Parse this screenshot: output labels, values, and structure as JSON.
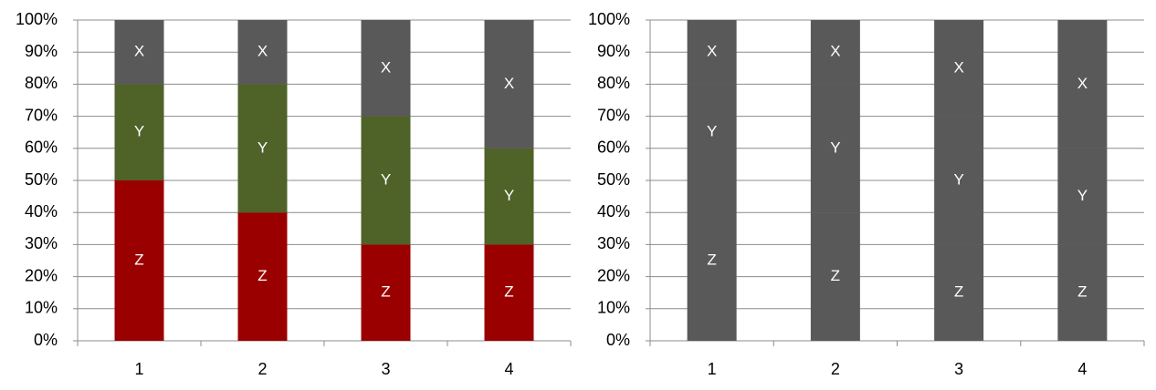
{
  "chart_data": [
    {
      "type": "bar",
      "stacked": true,
      "categories": [
        "1",
        "2",
        "3",
        "4"
      ],
      "series": [
        {
          "name": "Z",
          "color": "#9b0000",
          "values": [
            50,
            40,
            30,
            30
          ]
        },
        {
          "name": "Y",
          "color": "#4f6228",
          "values": [
            30,
            40,
            40,
            30
          ]
        },
        {
          "name": "X",
          "color": "#595959",
          "values": [
            20,
            20,
            30,
            40
          ]
        }
      ],
      "ylim": [
        0,
        100
      ],
      "yticks": [
        {
          "value": 0,
          "label": "0%"
        },
        {
          "value": 10,
          "label": "10%"
        },
        {
          "value": 20,
          "label": "20%"
        },
        {
          "value": 30,
          "label": "30%"
        },
        {
          "value": 40,
          "label": "40%"
        },
        {
          "value": 50,
          "label": "50%"
        },
        {
          "value": 60,
          "label": "60%"
        },
        {
          "value": 70,
          "label": "70%"
        },
        {
          "value": 80,
          "label": "80%"
        },
        {
          "value": 90,
          "label": "90%"
        },
        {
          "value": 100,
          "label": "100%"
        }
      ],
      "grid": true
    },
    {
      "type": "bar",
      "stacked": true,
      "categories": [
        "1",
        "2",
        "3",
        "4"
      ],
      "series": [
        {
          "name": "Z",
          "color": "#595959",
          "values": [
            50,
            40,
            30,
            30
          ]
        },
        {
          "name": "Y",
          "color": "#595959",
          "values": [
            30,
            40,
            40,
            30
          ]
        },
        {
          "name": "X",
          "color": "#595959",
          "values": [
            20,
            20,
            30,
            40
          ]
        }
      ],
      "ylim": [
        0,
        100
      ],
      "yticks": [
        {
          "value": 0,
          "label": "0%"
        },
        {
          "value": 10,
          "label": "10%"
        },
        {
          "value": 20,
          "label": "20%"
        },
        {
          "value": 30,
          "label": "30%"
        },
        {
          "value": 40,
          "label": "40%"
        },
        {
          "value": 50,
          "label": "50%"
        },
        {
          "value": 60,
          "label": "60%"
        },
        {
          "value": 70,
          "label": "70%"
        },
        {
          "value": 80,
          "label": "80%"
        },
        {
          "value": 90,
          "label": "90%"
        },
        {
          "value": 100,
          "label": "100%"
        }
      ],
      "grid": true
    }
  ]
}
